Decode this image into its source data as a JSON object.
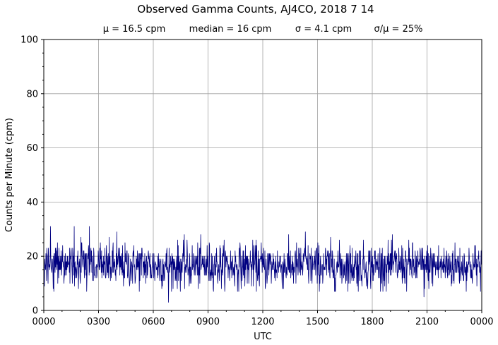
{
  "chart_data": {
    "type": "line",
    "title": "Observed Gamma Counts, AJ4CO, 2018 7 14",
    "stats": [
      "μ = 16.5 cpm",
      "median = 16 cpm",
      "σ = 4.1 cpm",
      "σ/μ = 25%"
    ],
    "xlabel": "UTC",
    "ylabel": "Counts per Minute (cpm)",
    "x_tick_labels": [
      "0000",
      "0300",
      "0600",
      "0900",
      "1200",
      "1500",
      "1800",
      "2100",
      "0000"
    ],
    "y_ticks": [
      0,
      20,
      40,
      60,
      80,
      100
    ],
    "ylim": [
      0,
      100
    ],
    "xlim_minutes": [
      0,
      1440
    ],
    "grid": true,
    "line_color": "#000080",
    "series": [
      {
        "sample_interval_minutes": 1,
        "mean": 16.5,
        "median": 16,
        "std": 4.1,
        "min": 3,
        "max": 31,
        "notable_points": [
          {
            "x": 0,
            "y": 14
          },
          {
            "x": 22,
            "y": 31
          },
          {
            "x": 100,
            "y": 31
          },
          {
            "x": 150,
            "y": 31
          },
          {
            "x": 240,
            "y": 29
          },
          {
            "x": 410,
            "y": 3
          },
          {
            "x": 860,
            "y": 29
          },
          {
            "x": 1250,
            "y": 5
          },
          {
            "x": 1440,
            "y": 25
          }
        ]
      }
    ]
  }
}
